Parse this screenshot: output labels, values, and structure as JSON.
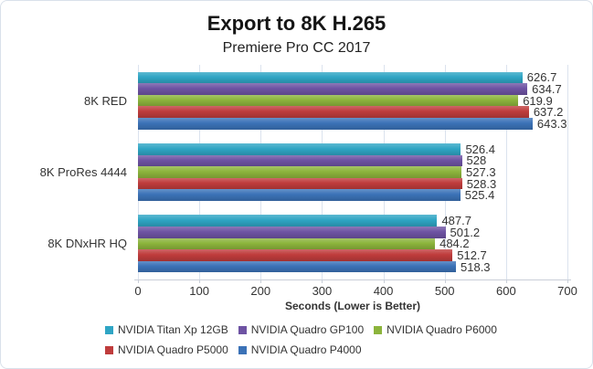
{
  "title": "Export to 8K H.265",
  "subtitle": "Premiere Pro CC 2017",
  "chart_data": {
    "type": "bar",
    "orientation": "horizontal",
    "title": "Export to 8K H.265",
    "subtitle": "Premiere Pro CC 2017",
    "categories": [
      "8K RED",
      "8K ProRes 4444",
      "8K DNxHR HQ"
    ],
    "series": [
      {
        "name": "NVIDIA Titan Xp 12GB",
        "color": "#2fa5c4",
        "values": [
          626.7,
          526.4,
          487.7
        ]
      },
      {
        "name": "NVIDIA Quadro GP100",
        "color": "#6e53a3",
        "values": [
          634.7,
          528,
          501.2
        ]
      },
      {
        "name": "NVIDIA Quadro P6000",
        "color": "#8cb43c",
        "values": [
          619.9,
          527.3,
          484.2
        ]
      },
      {
        "name": "NVIDIA Quadro P5000",
        "color": "#bf3c3c",
        "values": [
          637.2,
          528.3,
          512.7
        ]
      },
      {
        "name": "NVIDIA Quadro P4000",
        "color": "#3b72b7",
        "values": [
          643.3,
          525.4,
          518.3
        ]
      }
    ],
    "xlabel": "Seconds (Lower is Better)",
    "xlim": [
      0,
      700
    ],
    "xticks": [
      0,
      100,
      200,
      300,
      400,
      500,
      600,
      700
    ],
    "grid": "vertical",
    "value_labels_shown": true,
    "legend_position": "bottom",
    "legend_rows": [
      [
        0,
        1,
        2
      ],
      [
        3,
        4
      ]
    ]
  },
  "colors": {
    "gridline": "#dbe3ee",
    "axis": "#c9cfd8",
    "text": "#333333",
    "title_text": "#151515",
    "frame_border": "#d9e1ea",
    "background": "#ffffff"
  }
}
